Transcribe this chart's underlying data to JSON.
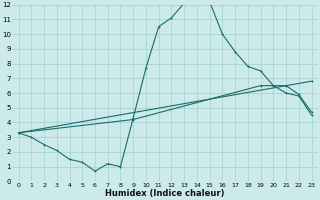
{
  "xlabel": "Humidex (Indice chaleur)",
  "xlim": [
    -0.5,
    23.5
  ],
  "ylim": [
    0,
    12
  ],
  "xticks": [
    0,
    1,
    2,
    3,
    4,
    5,
    6,
    7,
    8,
    9,
    10,
    11,
    12,
    13,
    14,
    15,
    16,
    17,
    18,
    19,
    20,
    21,
    22,
    23
  ],
  "yticks": [
    0,
    1,
    2,
    3,
    4,
    5,
    6,
    7,
    8,
    9,
    10,
    11,
    12
  ],
  "bg_color": "#cceaea",
  "grid_color": "#aad4d4",
  "line_color": "#1a6b6b",
  "curve1_x": [
    0,
    1,
    2,
    3,
    4,
    5,
    6,
    7,
    8,
    9,
    10,
    11,
    12,
    13,
    14,
    15,
    16,
    17,
    18,
    19,
    20,
    21,
    22,
    23
  ],
  "curve1_y": [
    3.3,
    3.0,
    2.5,
    2.1,
    1.5,
    1.3,
    0.7,
    1.2,
    1.0,
    4.3,
    7.7,
    10.5,
    11.1,
    12.1,
    12.2,
    12.2,
    10.0,
    8.8,
    7.8,
    7.5,
    6.5,
    6.0,
    5.8,
    4.5
  ],
  "curve2_x": [
    0,
    23
  ],
  "curve2_y": [
    3.3,
    6.8
  ],
  "curve3_x": [
    0,
    9,
    19,
    21,
    22,
    23
  ],
  "curve3_y": [
    3.3,
    4.2,
    6.5,
    6.5,
    5.9,
    4.7
  ]
}
